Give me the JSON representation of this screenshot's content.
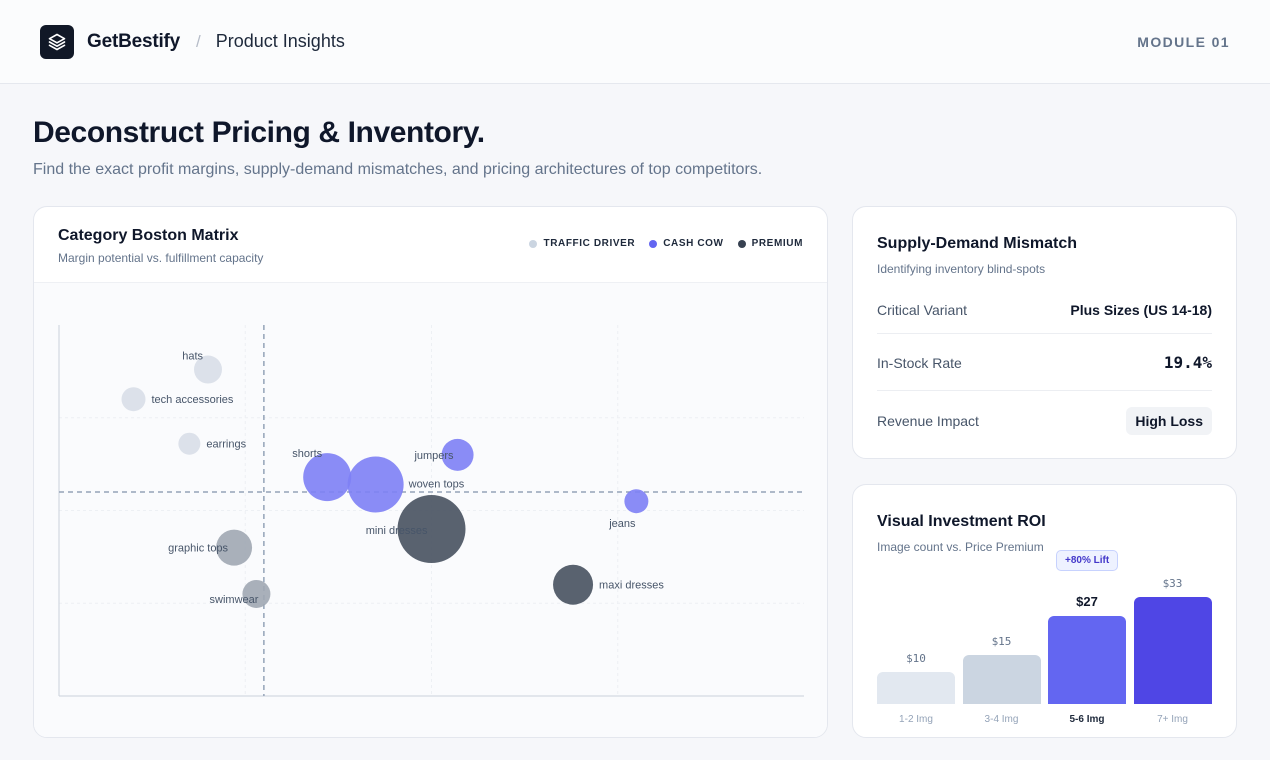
{
  "header": {
    "brand": "GetBestify",
    "separator": "/",
    "section": "Product Insights",
    "module": "MODULE 01",
    "logo_icon": "layers-icon"
  },
  "hero": {
    "title": "Deconstruct Pricing & Inventory.",
    "subtitle": "Find the exact profit margins, supply-demand mismatches, and pricing architectures of top competitors."
  },
  "matrix": {
    "title": "Category Boston Matrix",
    "subtitle": "Margin potential vs. fulfillment capacity",
    "legend": [
      {
        "label": "TRAFFIC DRIVER",
        "color": "#cbd5e1"
      },
      {
        "label": "CASH COW",
        "color": "#6366f1"
      },
      {
        "label": "PREMIUM",
        "color": "#374151"
      }
    ]
  },
  "chart_data": {
    "type": "scatter",
    "title": "Category Boston Matrix",
    "subtitle": "Margin potential vs. fulfillment capacity",
    "xlim": [
      0,
      100
    ],
    "ylim": [
      0,
      100
    ],
    "grid": true,
    "legend_position": "top-right",
    "series": [
      {
        "name": "TRAFFIC DRIVER",
        "color": "#cbd5e1"
      },
      {
        "name": "CASH COW",
        "color": "#6366f1"
      },
      {
        "name": "PREMIUM",
        "color": "#374151"
      }
    ],
    "points": [
      {
        "label": "hats",
        "x": 20,
        "y": 88,
        "size": 14,
        "group": "TRAFFIC DRIVER",
        "color": "#d8dee8",
        "label_pos": "left-up"
      },
      {
        "label": "tech accessories",
        "x": 10,
        "y": 80,
        "size": 12,
        "group": "TRAFFIC DRIVER",
        "color": "#d8dee8",
        "label_pos": "right"
      },
      {
        "label": "earrings",
        "x": 17.5,
        "y": 68,
        "size": 11,
        "group": "TRAFFIC DRIVER",
        "color": "#d8dee8",
        "label_pos": "right"
      },
      {
        "label": "shorts",
        "x": 36,
        "y": 59,
        "size": 24,
        "group": "CASH COW",
        "color": "#7d7ff5",
        "label_pos": "left-up"
      },
      {
        "label": "woven tops",
        "x": 42.5,
        "y": 57,
        "size": 28,
        "group": "CASH COW",
        "color": "#7d7ff5",
        "label_pos": "right-down"
      },
      {
        "label": "jumpers",
        "x": 53.5,
        "y": 65,
        "size": 16,
        "group": "CASH COW",
        "color": "#7d7ff5",
        "label_pos": "left"
      },
      {
        "label": "jeans",
        "x": 77.5,
        "y": 52.5,
        "size": 12,
        "group": "CASH COW",
        "color": "#7d7ff5",
        "label_pos": "below"
      },
      {
        "label": "mini dresses",
        "x": 50,
        "y": 45,
        "size": 34,
        "group": "PREMIUM",
        "color": "#4b5563",
        "label_pos": "left-mid"
      },
      {
        "label": "maxi dresses",
        "x": 69,
        "y": 30,
        "size": 20,
        "group": "PREMIUM",
        "color": "#4b5563",
        "label_pos": "right"
      },
      {
        "label": "graphic tops",
        "x": 23.5,
        "y": 40,
        "size": 18,
        "group": "TRAFFIC DRIVER",
        "color": "#a0a7b3",
        "label_pos": "left"
      },
      {
        "label": "swimwear",
        "x": 26.5,
        "y": 27.5,
        "size": 14,
        "group": "TRAFFIC DRIVER",
        "color": "#a0a7b3",
        "label_pos": "left-down"
      }
    ],
    "thresholds": {
      "x": 27.5,
      "y": 55
    }
  },
  "mismatch": {
    "title": "Supply-Demand Mismatch",
    "subtitle": "Identifying inventory blind-spots",
    "rows": [
      {
        "label": "Critical Variant",
        "value": "Plus Sizes (US 14-18)"
      },
      {
        "label": "In-Stock Rate",
        "value": "19.4%"
      },
      {
        "label": "Revenue Impact",
        "value": "High Loss"
      }
    ]
  },
  "roi": {
    "title": "Visual Investment ROI",
    "subtitle": "Image count vs. Price Premium",
    "lift_badge": "+80% Lift",
    "bars": [
      {
        "label": "1-2 Img",
        "value_label": "$10",
        "value": 10,
        "color": "#e2e8f0",
        "highlight": false
      },
      {
        "label": "3-4 Img",
        "value_label": "$15",
        "value": 15,
        "color": "#cbd5e1",
        "highlight": false
      },
      {
        "label": "5-6 Img",
        "value_label": "$27",
        "value": 27,
        "color": "#6366f1",
        "highlight": true
      },
      {
        "label": "7+ Img",
        "value_label": "$33",
        "value": 33,
        "color": "#4f46e5",
        "highlight": false
      }
    ]
  }
}
